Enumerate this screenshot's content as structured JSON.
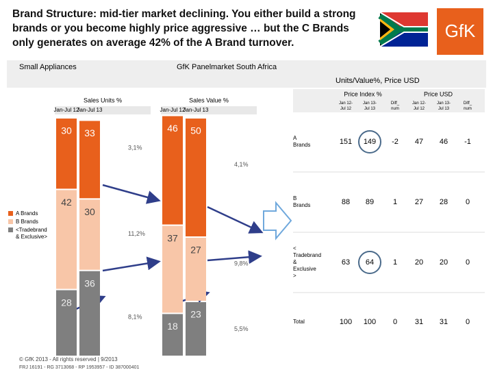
{
  "title": "Brand Structure: mid-tier market declining. You either build a strong brands or you become highly price aggressive … but the C Brands only generates on average 42% of the A Brand  turnover.",
  "logo": "GfK",
  "band": {
    "left": "Small Appliances",
    "center": "GfK Panelmarket South Africa",
    "right": "Units/Value%, Price USD"
  },
  "chart_data": [
    {
      "type": "bar",
      "stacked": true,
      "title": "Sales Units %",
      "categories": [
        "Jan-Jul 12",
        "Jan-Jul 13"
      ],
      "ylim": [
        0,
        100
      ],
      "series": [
        {
          "name": "<Tradebrand & Exclusive>",
          "color": "#7f7f7f",
          "values": [
            28,
            36
          ]
        },
        {
          "name": "B Brands",
          "color": "#f8c6a8",
          "values": [
            42,
            30
          ]
        },
        {
          "name": "A Brands",
          "color": "#e8601c",
          "values": [
            30,
            33
          ]
        }
      ],
      "annotations": [
        "8,1%",
        "11,2%",
        "3,1%"
      ]
    },
    {
      "type": "bar",
      "stacked": true,
      "title": "Sales Value %",
      "categories": [
        "Jan-Jul 12",
        "Jan-Jul 13"
      ],
      "ylim": [
        0,
        100
      ],
      "series": [
        {
          "color": "#7f7f7f",
          "values": [
            18,
            23
          ]
        },
        {
          "color": "#f8c6a8",
          "values": [
            37,
            27
          ]
        },
        {
          "color": "#e8601c",
          "values": [
            46,
            50
          ]
        }
      ],
      "annotations": [
        "5,5%",
        "9,8%",
        "4,1%"
      ]
    }
  ],
  "table": {
    "groups": [
      "Price Index %",
      "Price USD"
    ],
    "columns": [
      "Jan 12-Jul 12",
      "Jan 13-Jul 13",
      "Diff_num",
      "Jan 12-Jul 12",
      "Jan 13-Jul 13",
      "Diff_num"
    ],
    "rows": [
      {
        "label": "A Brands",
        "cells": [
          151,
          149,
          -2,
          47,
          46,
          -1
        ]
      },
      {
        "label": "B Brands",
        "cells": [
          88,
          89,
          1,
          27,
          28,
          0
        ]
      },
      {
        "label": "< Tradebrand & Exclusive >",
        "cells": [
          63,
          64,
          1,
          20,
          20,
          0
        ]
      },
      {
        "label": "Total",
        "cells": [
          100,
          100,
          0,
          31,
          31,
          0
        ]
      }
    ]
  },
  "footer": [
    "© GfK 2013 - All rights reserved | 9/2013",
    "FRJ 16191 - RG 3713068 - RP 1953957 - ID 387000401"
  ]
}
